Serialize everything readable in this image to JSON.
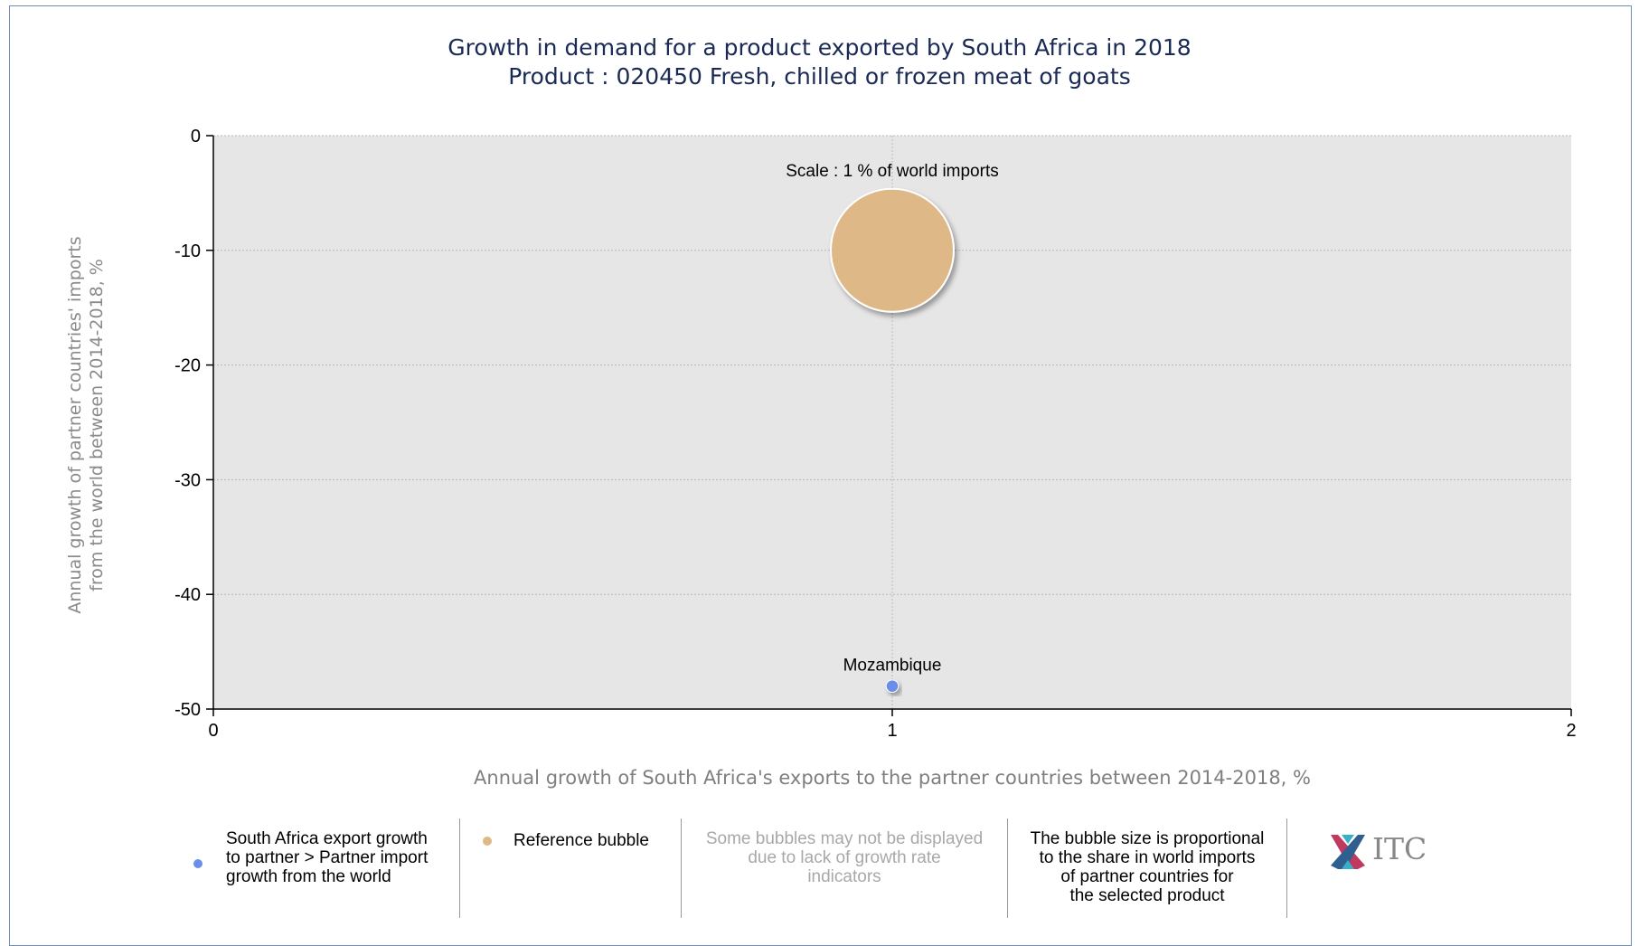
{
  "chart_data": {
    "type": "bubble",
    "title": "Growth in demand for a product exported by South Africa in 2018",
    "subtitle": "Product : 020450 Fresh, chilled or frozen meat of goats",
    "xlabel": "Annual growth of South Africa's exports to the partner countries between 2014-2018, %",
    "ylabel_line1": "Annual growth of partner countries' imports",
    "ylabel_line2": "from the world between 2014-2018, %",
    "xlim": [
      0,
      2
    ],
    "ylim": [
      -50,
      0
    ],
    "x_ticks": [
      "0",
      "1",
      "2"
    ],
    "y_ticks": [
      "0",
      "-10",
      "-20",
      "-30",
      "-40",
      "-50"
    ],
    "grid": true,
    "points": [
      {
        "label": "Mozambique",
        "x": 1,
        "y": -48,
        "share": 0.01,
        "color": "#6b8ee8"
      }
    ],
    "reference_bubble": {
      "label": "Scale : 1 % of world imports",
      "x": 1,
      "y": -10,
      "share": 1,
      "color": "#deb887"
    },
    "plot_background": "#e6e6e6"
  },
  "legend": {
    "item1": "South Africa export growth\nto partner > Partner import\ngrowth from the world",
    "item1_color": "#6b8ee8",
    "item2": "Reference bubble",
    "item2_color": "#deb887",
    "note1": "Some bubbles may not be displayed\ndue to lack of growth rate\nindicators",
    "note2": "The bubble size is proportional\nto the share in world imports\nof partner countries for\nthe selected product",
    "logo_text": "ITC"
  }
}
